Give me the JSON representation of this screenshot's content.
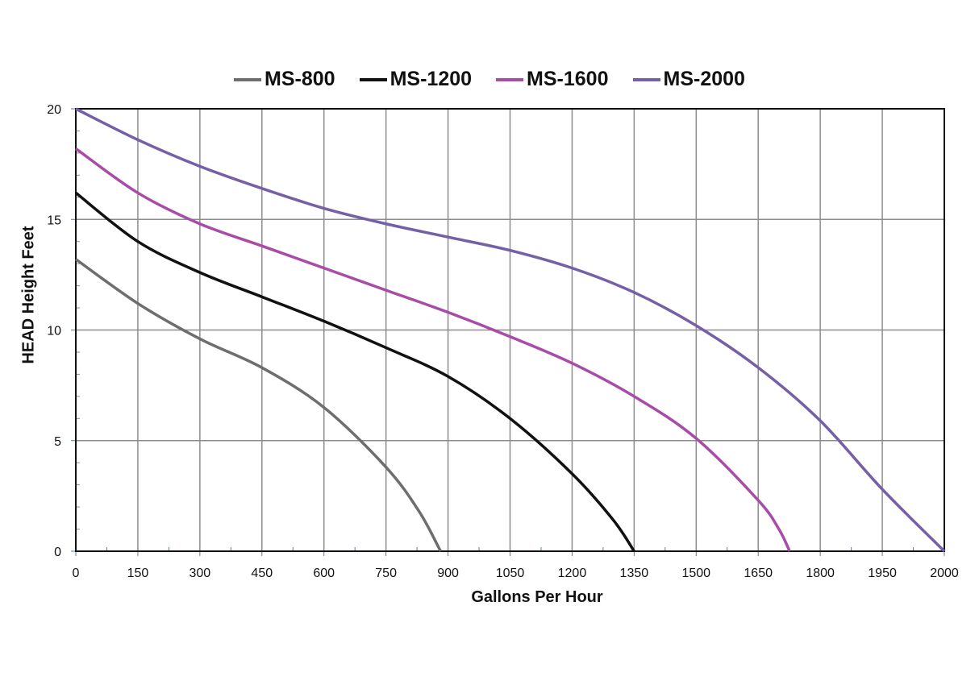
{
  "chart_data": {
    "type": "line",
    "title": "",
    "xlabel": "Gallons Per Hour",
    "ylabel": "HEAD Height Feet",
    "x_ticks": [
      "0",
      "150",
      "300",
      "450",
      "600",
      "750",
      "900",
      "1050",
      "1200",
      "1350",
      "1500",
      "1650",
      "1800",
      "1950",
      "2000"
    ],
    "y_ticks": [
      "0",
      "5",
      "10",
      "15",
      "20"
    ],
    "xlim": [
      0,
      2000
    ],
    "ylim": [
      0,
      20
    ],
    "grid": true,
    "legend_position": "top",
    "series": [
      {
        "name": "MS-800",
        "color": "#6e6e6e",
        "x": [
          0,
          150,
          300,
          450,
          600,
          750,
          830,
          882
        ],
        "y": [
          13.2,
          11.2,
          9.6,
          8.3,
          6.5,
          3.8,
          1.8,
          0
        ]
      },
      {
        "name": "MS-1200",
        "color": "#111111",
        "x": [
          0,
          150,
          300,
          450,
          600,
          750,
          900,
          1050,
          1200,
          1300,
          1350
        ],
        "y": [
          16.2,
          14.0,
          12.6,
          11.5,
          10.4,
          9.2,
          7.9,
          6.0,
          3.5,
          1.4,
          0
        ]
      },
      {
        "name": "MS-1600",
        "color": "#a84ca8",
        "x": [
          0,
          150,
          300,
          450,
          600,
          750,
          900,
          1050,
          1200,
          1350,
          1500,
          1650,
          1700,
          1726
        ],
        "y": [
          18.2,
          16.2,
          14.8,
          13.8,
          12.8,
          11.8,
          10.8,
          9.7,
          8.5,
          7.0,
          5.1,
          2.3,
          1.0,
          0
        ]
      },
      {
        "name": "MS-2000",
        "color": "#7560a8",
        "x": [
          0,
          150,
          300,
          450,
          600,
          750,
          900,
          1050,
          1200,
          1350,
          1500,
          1650,
          1800,
          1950,
          2000
        ],
        "y": [
          20.0,
          18.6,
          17.4,
          16.4,
          15.5,
          14.8,
          14.2,
          13.6,
          12.8,
          11.7,
          10.2,
          8.3,
          5.9,
          2.8,
          0
        ]
      }
    ]
  }
}
